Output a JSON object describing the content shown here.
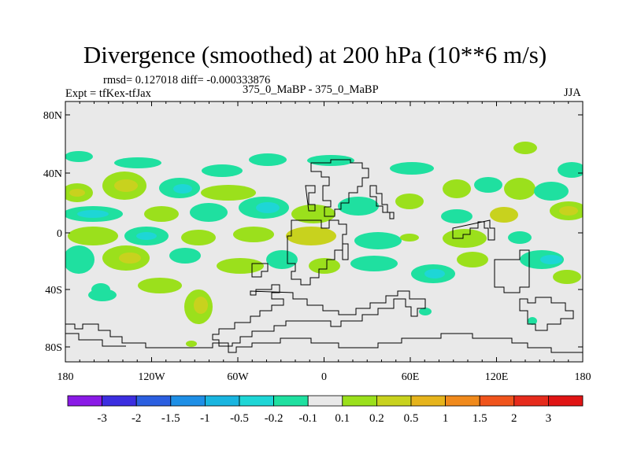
{
  "title": "Divergence (smoothed) at 200 hPa (10**6 m/s)",
  "stats": "rmsd= 0.127018 diff= -0.000333876",
  "expt": "Expt = tfKex-tfJax",
  "runs": "375_0_MaBP - 375_0_MaBP",
  "season": "JJA",
  "map": {
    "background_color": "#e9e9e9",
    "lat_ticks": [
      "80N",
      "40N",
      "0",
      "40S",
      "80S"
    ],
    "lon_ticks": [
      "180",
      "120W",
      "60W",
      "0",
      "60E",
      "120E",
      "180"
    ]
  },
  "colorbar": {
    "labels": [
      "-3",
      "-2",
      "-1.5",
      "-1",
      "-0.5",
      "-0.2",
      "-0.1",
      "0.1",
      "0.2",
      "0.5",
      "1",
      "1.5",
      "2",
      "3"
    ],
    "colors": [
      "#8a1ae6",
      "#3c2ee0",
      "#2b5fe0",
      "#1e8fe6",
      "#19b5e0",
      "#1ed6d6",
      "#1fe0a0",
      "#e9e9e9",
      "#9be01c",
      "#c8d21e",
      "#e6b41c",
      "#f08a1c",
      "#f0541c",
      "#e62b1c",
      "#e01414"
    ]
  }
}
